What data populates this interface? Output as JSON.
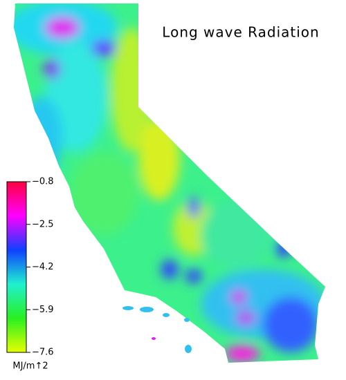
{
  "title": "Long wave Radiation",
  "colorbar": {
    "range": [
      -7.6,
      -0.8
    ],
    "ticks": [
      {
        "value": -0.8,
        "label": "−0.8"
      },
      {
        "value": -2.5,
        "label": "−2.5"
      },
      {
        "value": -4.2,
        "label": "−4.2"
      },
      {
        "value": -5.9,
        "label": "−5.9"
      },
      {
        "value": -7.6,
        "label": "−7.6"
      }
    ],
    "colors": [
      "#e6ff00",
      "#28f020",
      "#20f0d0",
      "#1040ff",
      "#ff00ff",
      "#ff0040"
    ],
    "unit": "MJ/m↑2"
  }
}
